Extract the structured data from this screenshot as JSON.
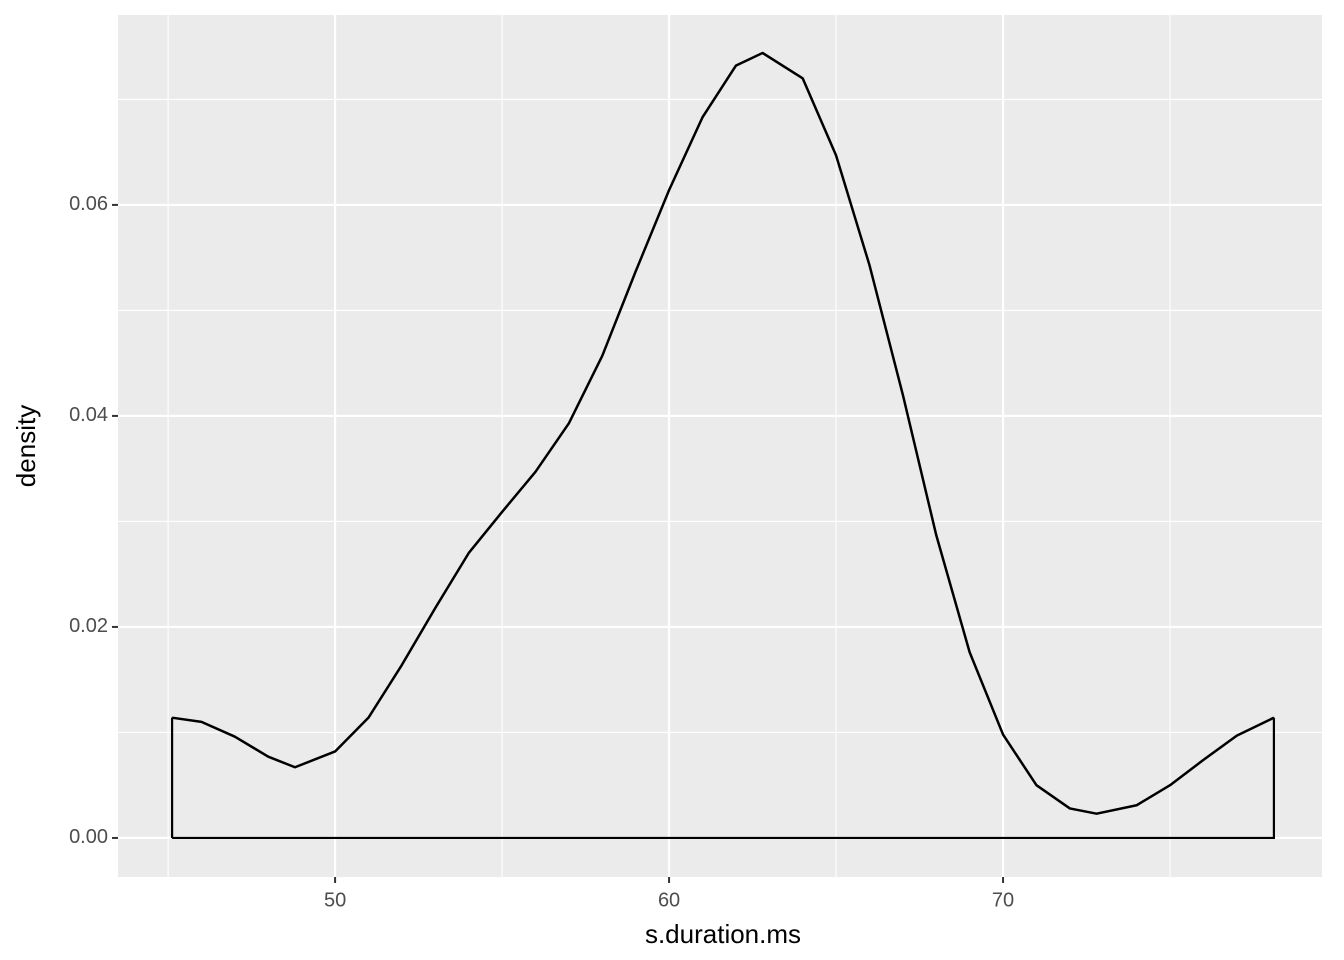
{
  "chart_data": {
    "type": "density",
    "xlabel": "s.duration.ms",
    "ylabel": "density",
    "x": [
      45.12,
      46,
      47,
      48,
      48.8,
      50,
      51,
      52,
      53,
      54,
      55,
      56,
      57,
      58,
      59,
      60,
      61,
      62,
      62.8,
      64,
      65,
      66,
      67,
      68,
      69,
      70,
      71,
      72,
      72.8,
      74,
      75,
      76,
      77,
      78.11
    ],
    "values": [
      0.0114,
      0.011,
      0.0096,
      0.0077,
      0.0067,
      0.0082,
      0.0114,
      0.0164,
      0.0218,
      0.027,
      0.0309,
      0.0347,
      0.0393,
      0.0457,
      0.0537,
      0.0614,
      0.0683,
      0.0732,
      0.0744,
      0.072,
      0.0647,
      0.0543,
      0.042,
      0.0287,
      0.0176,
      0.0098,
      0.005,
      0.0028,
      0.0023,
      0.0031,
      0.005,
      0.0074,
      0.0097,
      0.0114
    ],
    "color": "#000000",
    "xlim": [
      43.5,
      79.55
    ],
    "ylim": [
      -0.0037,
      0.078
    ],
    "xticks": [
      50,
      60,
      70
    ],
    "xminorticks": [
      45,
      55,
      65,
      75
    ],
    "yticks": [
      {
        "value": 0,
        "label": "0.00"
      },
      {
        "value": 0.02,
        "label": "0.02"
      },
      {
        "value": 0.04,
        "label": "0.04"
      },
      {
        "value": 0.06,
        "label": "0.06"
      }
    ],
    "yminorticks": [
      0.01,
      0.03,
      0.05,
      0.07
    ],
    "grid": true
  }
}
